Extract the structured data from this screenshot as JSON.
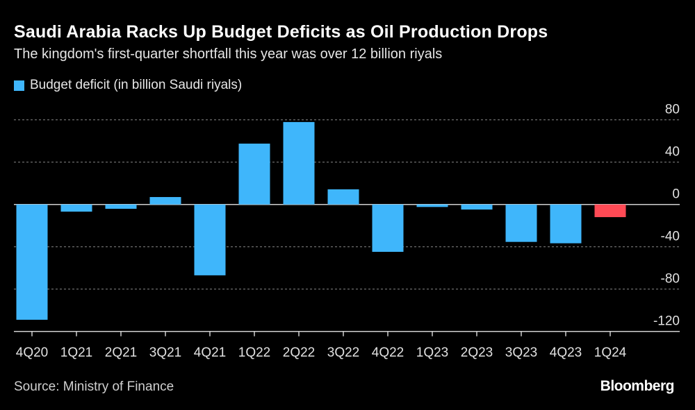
{
  "title": "Saudi Arabia Racks Up Budget Deficits as Oil Production Drops",
  "subtitle": "The kingdom's first-quarter shortfall this year was over 12 billion riyals",
  "source": "Source: Ministry of Finance",
  "logo": "Bloomberg",
  "chart_data": {
    "type": "bar",
    "title": "Saudi Arabia Racks Up Budget Deficits as Oil Production Drops",
    "legend": [
      {
        "name": "Budget deficit (in billion Saudi riyals)",
        "color": "#3fb6fb"
      }
    ],
    "legend_placement": "top-left",
    "categories": [
      "4Q20",
      "1Q21",
      "2Q21",
      "3Q21",
      "4Q21",
      "1Q22",
      "2Q22",
      "3Q22",
      "4Q22",
      "1Q23",
      "2Q23",
      "3Q23",
      "4Q23",
      "1Q24"
    ],
    "series": [
      {
        "name": "Budget deficit (in billion Saudi riyals)",
        "values": [
          -109,
          -6.8,
          -4.1,
          7.0,
          -67,
          57.5,
          77.9,
          14.3,
          -44.8,
          -2.4,
          -4.8,
          -35.4,
          -36.7,
          -12.0
        ]
      }
    ],
    "highlight": {
      "category": "1Q24",
      "color": "#ff4a55"
    },
    "bar_color": "#3fb6fb",
    "ylim": [
      -120,
      80
    ],
    "yticks": [
      80,
      40,
      0,
      -40,
      -80,
      -120
    ],
    "y_axis_side": "right",
    "grid": true
  }
}
